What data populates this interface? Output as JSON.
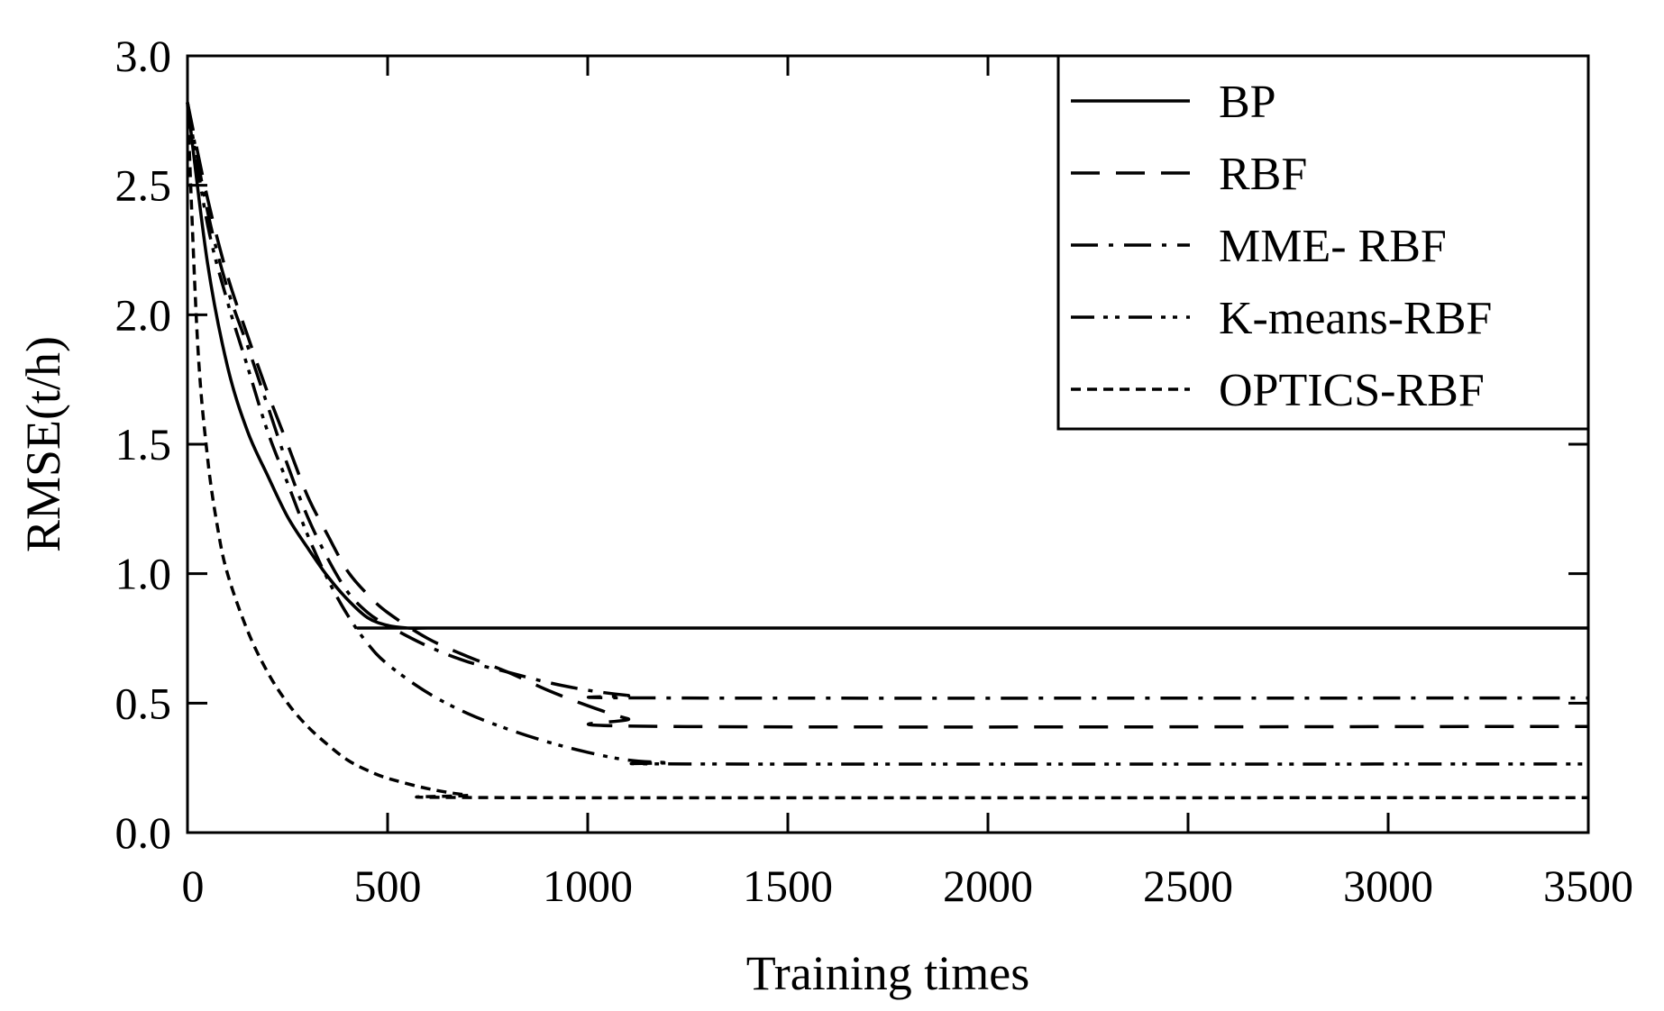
{
  "chart_data": {
    "type": "line",
    "title": "",
    "xlabel": "Training times",
    "ylabel": "RMSE(t/h)",
    "xlim": [
      0,
      3500
    ],
    "ylim": [
      0.0,
      3.0
    ],
    "x_ticks": [
      0,
      500,
      1000,
      1500,
      2000,
      2500,
      3000,
      3500
    ],
    "x_tick_labels": [
      "0",
      "500",
      "1000",
      "1500",
      "2000",
      "2500",
      "3000",
      "3500"
    ],
    "y_ticks": [
      0.0,
      0.5,
      1.0,
      1.5,
      2.0,
      2.5,
      3.0
    ],
    "y_tick_labels": [
      "0.0",
      "0.5",
      "1.0",
      "1.5",
      "2.0",
      "2.5",
      "3.0"
    ],
    "grid": false,
    "legend_position": "top-right",
    "series": [
      {
        "name": "BP",
        "dash": "solid",
        "x": [
          0,
          50,
          100,
          150,
          200,
          250,
          300,
          350,
          400,
          450,
          500,
          550,
          600,
          650,
          3500
        ],
        "y": [
          2.82,
          2.2,
          1.8,
          1.55,
          1.38,
          1.22,
          1.1,
          0.99,
          0.9,
          0.83,
          0.8,
          0.79,
          0.79,
          0.79,
          0.79
        ]
      },
      {
        "name": "RBF",
        "dash": "dashed",
        "x": [
          0,
          50,
          100,
          150,
          200,
          250,
          300,
          350,
          400,
          450,
          500,
          600,
          700,
          800,
          900,
          1000,
          1100,
          1200,
          3500
        ],
        "y": [
          2.82,
          2.45,
          2.15,
          1.92,
          1.7,
          1.5,
          1.3,
          1.15,
          1.01,
          0.92,
          0.85,
          0.75,
          0.68,
          0.62,
          0.55,
          0.49,
          0.44,
          0.41,
          0.41
        ]
      },
      {
        "name": "MME- RBF",
        "dash": "dash-dot",
        "x": [
          0,
          50,
          100,
          150,
          200,
          250,
          300,
          350,
          400,
          450,
          500,
          600,
          700,
          800,
          900,
          1000,
          1100,
          1200,
          3500
        ],
        "y": [
          2.82,
          2.4,
          2.1,
          1.88,
          1.65,
          1.42,
          1.22,
          1.06,
          0.93,
          0.85,
          0.8,
          0.72,
          0.66,
          0.62,
          0.58,
          0.55,
          0.53,
          0.52,
          0.52
        ]
      },
      {
        "name": "K-means-RBF",
        "dash": "dash-dot-dot",
        "x": [
          0,
          50,
          100,
          150,
          200,
          250,
          300,
          350,
          400,
          450,
          500,
          600,
          700,
          800,
          900,
          1000,
          1100,
          1200,
          1300,
          3500
        ],
        "y": [
          2.82,
          2.35,
          2.05,
          1.8,
          1.55,
          1.35,
          1.15,
          0.98,
          0.84,
          0.73,
          0.65,
          0.54,
          0.46,
          0.4,
          0.35,
          0.31,
          0.28,
          0.27,
          0.265,
          0.265
        ]
      },
      {
        "name": "OPTICS-RBF",
        "dash": "short-dash",
        "x": [
          0,
          25,
          50,
          75,
          100,
          150,
          200,
          250,
          300,
          350,
          400,
          450,
          500,
          600,
          700,
          800,
          3500
        ],
        "y": [
          2.82,
          1.9,
          1.45,
          1.18,
          1.0,
          0.78,
          0.62,
          0.5,
          0.41,
          0.34,
          0.28,
          0.24,
          0.21,
          0.17,
          0.145,
          0.135,
          0.135
        ]
      }
    ]
  }
}
